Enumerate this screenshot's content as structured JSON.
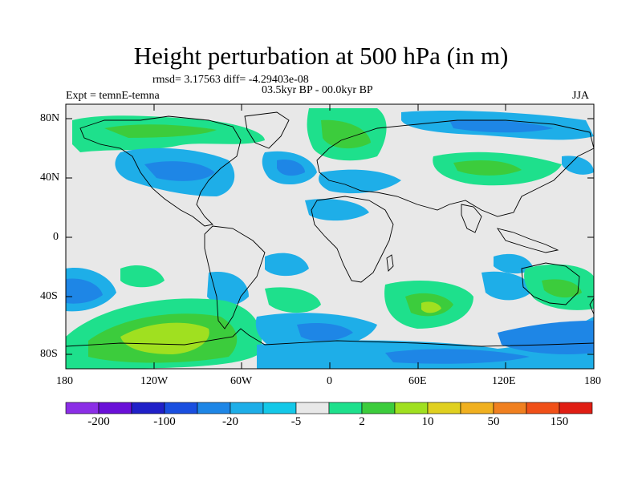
{
  "header": {
    "title": "Height perturbation at 500 hPa (in m)",
    "stats": "rmsd= 3.17563 diff= -4.29403e-08",
    "expt": "Expt = temnE-temna",
    "period": "03.5kyr BP - 00.0kyr BP",
    "season": "JJA"
  },
  "map": {
    "lat_labels": [
      "80N",
      "40N",
      "0",
      "40S",
      "80S"
    ],
    "lon_labels": [
      "180",
      "120W",
      "60W",
      "0",
      "60E",
      "120E",
      "180"
    ],
    "background_color": "#e8e8e8",
    "coastline_color": "#000000"
  },
  "colorbar": {
    "colors": [
      "#8b2ee6",
      "#6a10d8",
      "#2020c8",
      "#1a4fe0",
      "#1e86e6",
      "#1eaee8",
      "#14c8e8",
      "#e8e8e8",
      "#1ee08c",
      "#3ccc3c",
      "#a0e020",
      "#e0d020",
      "#f0b020",
      "#f08020",
      "#f05018",
      "#e01e14"
    ],
    "labels": [
      "-200",
      "-100",
      "-20",
      "-5",
      "2",
      "10",
      "50",
      "150"
    ]
  }
}
